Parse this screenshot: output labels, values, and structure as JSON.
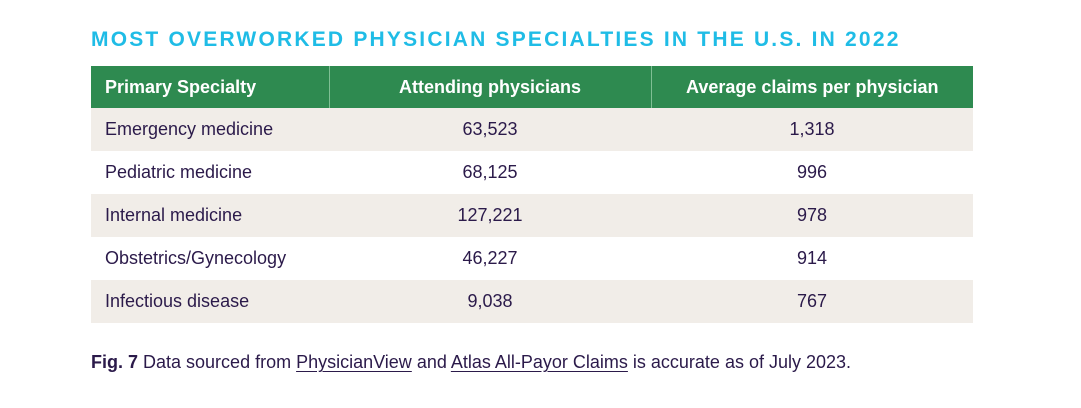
{
  "title": "MOST OVERWORKED PHYSICIAN SPECIALTIES IN THE U.S. IN 2022",
  "colors": {
    "title": "#1fbce6",
    "header_bg": "#2e8a50",
    "row_alt_bg": "#f1ede8",
    "text": "#2b1a4a"
  },
  "table": {
    "headers": [
      "Primary Specialty",
      "Attending physicians",
      "Average claims per physician"
    ],
    "rows": [
      [
        "Emergency medicine",
        "63,523",
        "1,318"
      ],
      [
        "Pediatric medicine",
        "68,125",
        "996"
      ],
      [
        "Internal medicine",
        "127,221",
        "978"
      ],
      [
        "Obstetrics/Gynecology",
        "46,227",
        "914"
      ],
      [
        "Infectious disease",
        "9,038",
        "767"
      ]
    ]
  },
  "caption": {
    "fig_label": "Fig. 7",
    "text_1": " Data sourced from ",
    "link_1": "PhysicianView",
    "text_2": " and ",
    "link_2": "Atlas All-Payor Claims",
    "text_3": " is accurate as of July 2023."
  }
}
